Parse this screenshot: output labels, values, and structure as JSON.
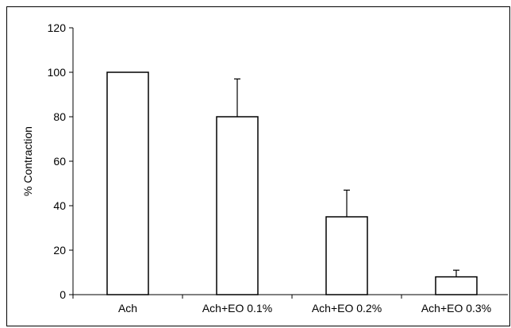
{
  "chart_data": {
    "type": "bar",
    "title": "",
    "xlabel": "",
    "ylabel": "% Contraction",
    "ylim": [
      0,
      120
    ],
    "yticks": [
      0,
      20,
      40,
      60,
      80,
      100,
      120
    ],
    "categories": [
      "Ach",
      "Ach+EO 0.1%",
      "Ach+EO 0.2%",
      "Ach+EO 0.3%"
    ],
    "values": [
      100,
      80,
      35,
      8
    ],
    "error_plus": [
      0,
      17,
      12,
      3
    ],
    "grid": false,
    "bar_fill": "#ffffff",
    "bar_stroke": "#000000"
  }
}
